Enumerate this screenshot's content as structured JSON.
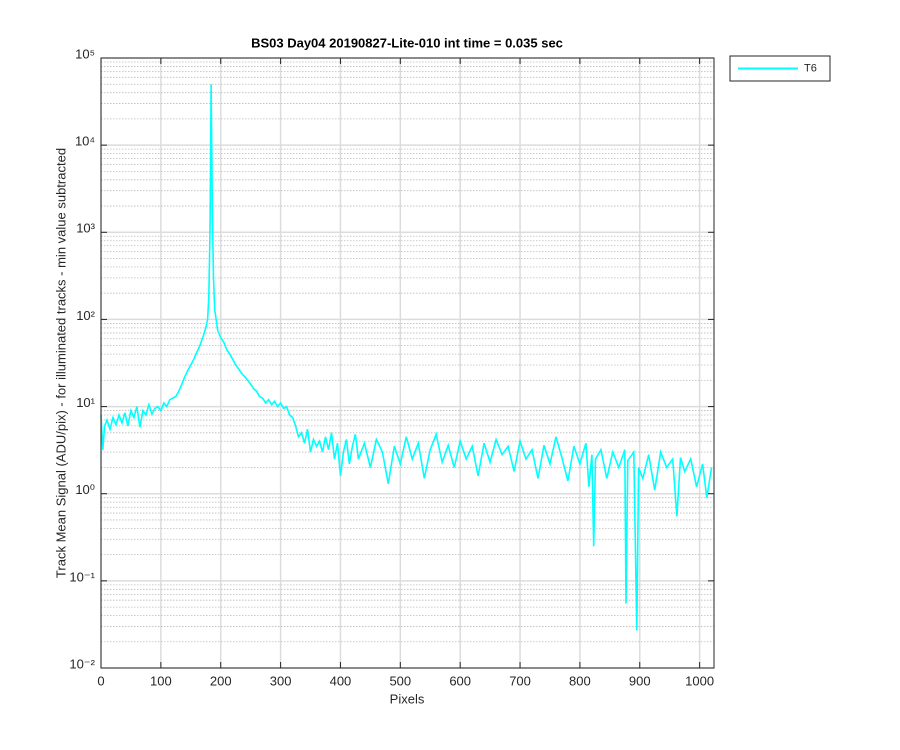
{
  "chart_data": {
    "type": "line",
    "title": "BS03 Day04 20190827-Lite-010 int time = 0.035 sec",
    "xlabel": "Pixels",
    "ylabel": "Track Mean Signal (ADU/pix) - for illuminated tracks - min value subtracted",
    "yscale": "log",
    "grid": true,
    "minor_grid": true,
    "legend": "outside-northeast",
    "xlim": [
      0,
      1024
    ],
    "ylim": [
      0.01,
      100000
    ],
    "xticks": [
      0,
      100,
      200,
      300,
      400,
      500,
      600,
      700,
      800,
      900,
      1000
    ],
    "yticks": [
      {
        "value": 0.01,
        "label": "10⁻²"
      },
      {
        "value": 0.1,
        "label": "10⁻¹"
      },
      {
        "value": 1,
        "label": "10⁰"
      },
      {
        "value": 10,
        "label": "10¹"
      },
      {
        "value": 100,
        "label": "10²"
      },
      {
        "value": 1000,
        "label": "10³"
      },
      {
        "value": 10000,
        "label": "10⁴"
      },
      {
        "value": 100000,
        "label": "10⁵"
      }
    ],
    "x": [
      0,
      3,
      6,
      10,
      15,
      20,
      25,
      30,
      35,
      40,
      45,
      50,
      55,
      60,
      65,
      70,
      75,
      80,
      85,
      90,
      95,
      100,
      105,
      110,
      115,
      120,
      125,
      130,
      135,
      140,
      145,
      150,
      155,
      160,
      165,
      170,
      175,
      178,
      180,
      182,
      183,
      184,
      185,
      186,
      188,
      190,
      195,
      200,
      205,
      210,
      215,
      220,
      225,
      230,
      235,
      240,
      245,
      250,
      255,
      260,
      265,
      270,
      275,
      280,
      285,
      290,
      295,
      300,
      305,
      310,
      315,
      320,
      325,
      330,
      335,
      340,
      345,
      350,
      355,
      360,
      365,
      370,
      375,
      380,
      385,
      390,
      395,
      400,
      405,
      410,
      415,
      420,
      425,
      430,
      440,
      450,
      460,
      470,
      480,
      490,
      500,
      510,
      520,
      530,
      540,
      550,
      560,
      570,
      580,
      590,
      600,
      610,
      620,
      630,
      640,
      650,
      660,
      670,
      680,
      690,
      700,
      710,
      720,
      730,
      740,
      750,
      760,
      770,
      780,
      790,
      800,
      810,
      815,
      820,
      823,
      826,
      835,
      845,
      855,
      865,
      875,
      877,
      880,
      890,
      895,
      898,
      905,
      915,
      925,
      935,
      945,
      955,
      962,
      968,
      975,
      985,
      995,
      1005,
      1012,
      1020
    ],
    "series": [
      {
        "name": "T6",
        "color": "#00ffff",
        "values": [
          8,
          3.2,
          6,
          7,
          5.5,
          7.5,
          6.2,
          8,
          6.5,
          8.5,
          6,
          9,
          7.5,
          10,
          5.8,
          9,
          8,
          10.5,
          8.2,
          9.5,
          10,
          9,
          11,
          10,
          12,
          12.5,
          13,
          15,
          18,
          22,
          26,
          30,
          35,
          42,
          50,
          62,
          80,
          100,
          180,
          1000,
          5000,
          50000,
          10000,
          2000,
          300,
          130,
          75,
          62,
          55,
          45,
          40,
          35,
          30,
          27,
          24,
          22,
          20,
          18,
          16,
          15,
          13,
          12.5,
          11,
          12,
          10.5,
          11.5,
          10,
          11,
          9.5,
          10,
          8,
          7.5,
          6,
          4.5,
          5,
          3.8,
          5.5,
          3,
          4.2,
          3.5,
          4,
          3,
          4.5,
          3.2,
          5,
          2.5,
          3.8,
          1.6,
          3,
          4.2,
          2.2,
          3.5,
          4.8,
          2.5,
          3.8,
          2,
          4.2,
          3,
          1.3,
          3.5,
          2.2,
          4.5,
          2.5,
          3.8,
          1.5,
          3.2,
          4.8,
          2.3,
          3.6,
          2,
          4,
          2.5,
          3.5,
          1.6,
          3.8,
          2.3,
          4.2,
          2.8,
          3.5,
          1.8,
          4,
          2.5,
          3.2,
          1.5,
          3.6,
          2.2,
          4.5,
          2.6,
          1.4,
          3.5,
          2.2,
          3.8,
          1.2,
          2.8,
          0.25,
          2.5,
          3.2,
          1.5,
          3,
          2,
          3.2,
          0.055,
          2.4,
          3,
          0.027,
          2,
          1.5,
          2.8,
          1.1,
          3,
          2,
          2.5,
          0.55,
          2.6,
          1.8,
          2.5,
          1.2,
          2.2,
          0.9,
          2.0
        ]
      }
    ]
  }
}
